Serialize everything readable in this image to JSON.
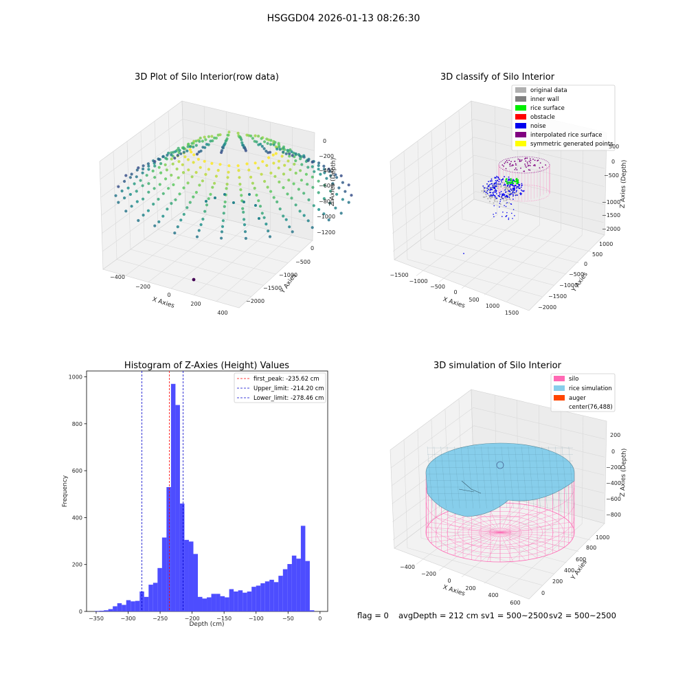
{
  "suptitle": "HSGGD04 2026-01-13 08:26:30",
  "status_line": {
    "flag": "flag = 0",
    "avg_depth": "avgDepth = 212 cm",
    "sv1": "sv1 = 500~2500",
    "sv2": "sv2 = 500~2500"
  },
  "colors": {
    "original_data": "#b0b0b0",
    "inner_wall": "#808080",
    "rice_surface": "#00ee00",
    "obstacle": "#ff0000",
    "noise": "#0000ee",
    "interpolated_rice_surface": "#800080",
    "symmetric_generated_points": "#ffff00",
    "silo": "#ff69b4",
    "rice_simulation": "#87ceeb",
    "auger": "#ff4500",
    "histogram_bar": "#4d4dff"
  },
  "chart_data": [
    {
      "type": "scatter",
      "subtype": "3d",
      "title": "3D Plot of Silo Interior(row data)",
      "xlabel": "X Axies",
      "ylabel": "Y Axies",
      "zlabel": "Z Axies (Depth)",
      "xticks": [
        "−400",
        "−200",
        "0",
        "200",
        "400"
      ],
      "yticks": [
        "0",
        "−500",
        "−1000",
        "−1500",
        "−2000"
      ],
      "zticks": [
        "0",
        "−200",
        "−400",
        "−600",
        "−800",
        "−1000",
        "−1200"
      ],
      "grid": true
    },
    {
      "type": "scatter",
      "subtype": "3d",
      "title": "3D classify of Silo Interior",
      "xlabel": "X Axies",
      "ylabel": "Y Axies",
      "zlabel": "Z Axies (Depth)",
      "xticks": [
        "−1500",
        "−1000",
        "−500",
        "0",
        "500",
        "1000",
        "1500"
      ],
      "yticks": [
        "1000",
        "500",
        "0",
        "−500",
        "−1000",
        "−1500",
        "−2000"
      ],
      "zticks": [
        "500",
        "0",
        "−500",
        "−1000",
        "−1500",
        "−2000"
      ],
      "zticks_hidden_top": "1000",
      "legend": [
        "original data",
        "inner wall",
        "rice surface",
        "obstacle",
        "noise",
        "interpolated rice surface",
        "symmetric generated points"
      ],
      "legend_placement": "top-right",
      "grid": true
    },
    {
      "type": "bar",
      "subtype": "histogram",
      "title": "Histogram of Z-Axies (Height) Values",
      "xlabel": "Depth (cm)",
      "ylabel": "Frequency",
      "xlim": [
        -365,
        12
      ],
      "ylim": [
        0,
        1025
      ],
      "xticks": [
        -350,
        -300,
        -250,
        -200,
        -150,
        -100,
        -50,
        0
      ],
      "xtick_labels": [
        "−350",
        "−300",
        "−250",
        "−200",
        "−150",
        "−100",
        "−50",
        "0"
      ],
      "yticks": [
        0,
        200,
        400,
        600,
        800,
        1000
      ],
      "ytick_labels": [
        "0",
        "200",
        "400",
        "600",
        "800",
        "1000"
      ],
      "bin_start": -352,
      "bin_width": 7,
      "values": [
        2,
        3,
        5,
        10,
        22,
        35,
        28,
        48,
        43,
        45,
        85,
        62,
        114,
        122,
        185,
        315,
        530,
        970,
        880,
        460,
        305,
        298,
        245,
        62,
        55,
        60,
        75,
        75,
        65,
        60,
        95,
        85,
        90,
        80,
        85,
        105,
        110,
        120,
        128,
        135,
        125,
        152,
        180,
        202,
        238,
        225,
        365,
        215,
        5
      ],
      "vlines": [
        {
          "x": -235.62,
          "label": "first_peak: -235.62 cm",
          "color": "#ff0000"
        },
        {
          "x": -214.2,
          "label": "Upper_limit: -214.20 cm",
          "color": "#0000cc"
        },
        {
          "x": -278.46,
          "label": "Lower_limit: -278.46 cm",
          "color": "#0000cc"
        }
      ],
      "legend_placement": "top-right"
    },
    {
      "type": "area",
      "subtype": "3d-surface",
      "title": "3D simulation of Silo Interior",
      "xlabel": "X Axies",
      "ylabel": "Y Axies",
      "zlabel": "Z Axies (Depth)",
      "xticks": [
        "−400",
        "−200",
        "0",
        "200",
        "400",
        "600"
      ],
      "yticks": [
        "1000",
        "800",
        "600",
        "400",
        "200",
        "0"
      ],
      "zticks": [
        "200",
        "0",
        "−200",
        "−400",
        "−600",
        "−800"
      ],
      "legend": [
        "silo",
        "rice simulation",
        "auger",
        "center(76,488)"
      ],
      "legend_placement": "top-right",
      "grid": true
    }
  ]
}
